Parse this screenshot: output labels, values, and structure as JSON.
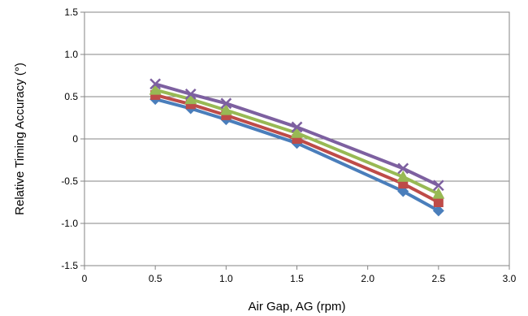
{
  "chart_data": {
    "type": "line",
    "title": "",
    "xlabel": "Air Gap, AG (rpm)",
    "ylabel": "Relative Timing Accuracy (°)",
    "xlim": [
      0,
      3.0
    ],
    "ylim": [
      -1.5,
      1.5
    ],
    "x_ticks": [
      0,
      0.5,
      1.0,
      1.5,
      2.0,
      2.5,
      3.0
    ],
    "x_tick_labels": [
      "0",
      "0.5",
      "1.0",
      "1.5",
      "2.0",
      "2.5",
      "3.0"
    ],
    "y_ticks": [
      1.5,
      1.0,
      0.5,
      0,
      -0.5,
      -1.0,
      -1.5
    ],
    "y_tick_labels": [
      "1.5",
      "1.0",
      "0.5",
      "0",
      "-0.5",
      "-1.0",
      "-1.5"
    ],
    "grid": "horizontal",
    "legend": "none",
    "x": [
      0.5,
      0.75,
      1.0,
      1.5,
      2.25,
      2.5
    ],
    "series": [
      {
        "color": "#4a7ebb",
        "marker": "diamond",
        "values": [
          0.47,
          0.36,
          0.23,
          -0.05,
          -0.62,
          -0.85
        ]
      },
      {
        "color": "#be4b48",
        "marker": "square",
        "values": [
          0.52,
          0.41,
          0.28,
          0.0,
          -0.53,
          -0.75
        ]
      },
      {
        "color": "#98b954",
        "marker": "triangle",
        "values": [
          0.58,
          0.47,
          0.34,
          0.07,
          -0.45,
          -0.65
        ]
      },
      {
        "color": "#7d60a0",
        "marker": "x",
        "values": [
          0.65,
          0.53,
          0.42,
          0.14,
          -0.35,
          -0.55
        ]
      }
    ]
  }
}
